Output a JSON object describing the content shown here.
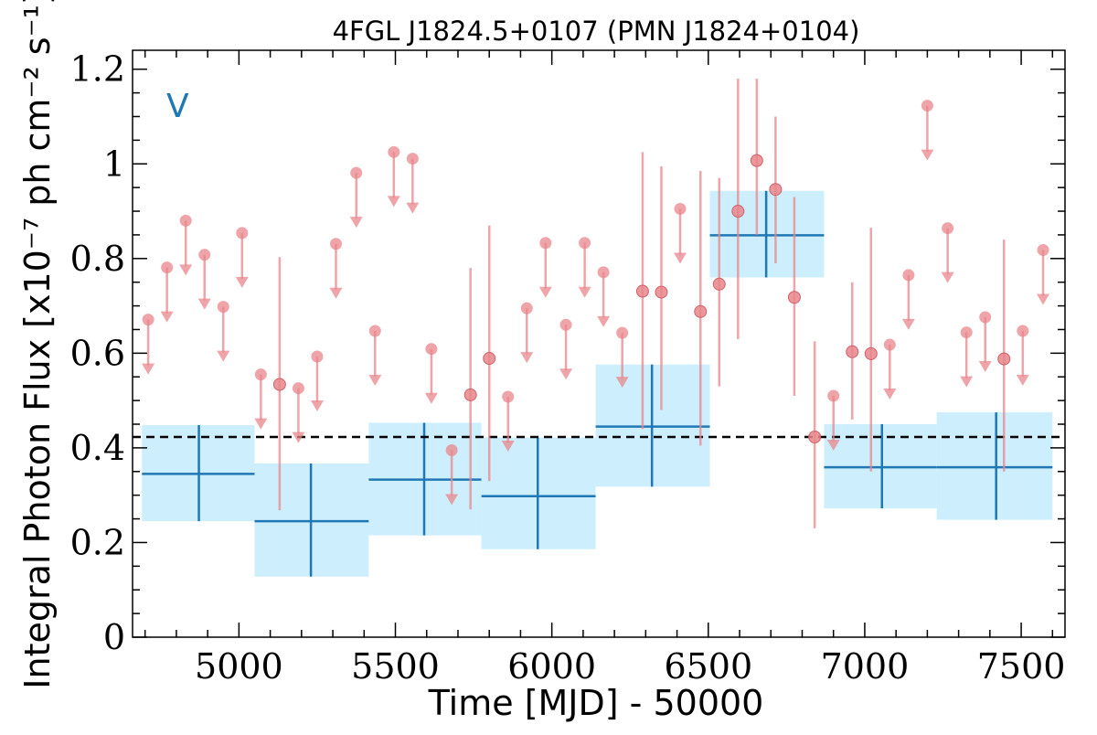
{
  "chart_data": {
    "type": "scatter",
    "title": "4FGL J1824.5+0107 (PMN J1824+0104)",
    "xlabel": "Time [MJD] - 50000",
    "ylabel": "Integral Photon Flux [x10⁻⁷ ph cm⁻² s⁻¹]",
    "xlim": [
      4660,
      7640
    ],
    "ylim": [
      0,
      1.24
    ],
    "xticks": [
      5000,
      5500,
      6000,
      6500,
      7000,
      7500
    ],
    "yticks": [
      0,
      0.2,
      0.4,
      0.6,
      0.8,
      1,
      1.2
    ],
    "ytick_labels": [
      "0",
      "0.2",
      "0.4",
      "0.6",
      "0.8",
      "1",
      "1.2"
    ],
    "annotation": "V",
    "mean_flux": 0.423,
    "colors": {
      "bins": "#1f77b4",
      "bin_fill": "#cdeefc",
      "points": "#e8868b",
      "mean_line": "#000000"
    },
    "binned": [
      {
        "x": 4872,
        "xmin": 4690,
        "xmax": 5050,
        "y": 0.345,
        "ylo": 0.245,
        "yhi": 0.448
      },
      {
        "x": 5230,
        "xmin": 5050,
        "xmax": 5415,
        "y": 0.245,
        "ylo": 0.128,
        "yhi": 0.367
      },
      {
        "x": 5592,
        "xmin": 5415,
        "xmax": 5775,
        "y": 0.333,
        "ylo": 0.215,
        "yhi": 0.453
      },
      {
        "x": 5955,
        "xmin": 5775,
        "xmax": 6140,
        "y": 0.298,
        "ylo": 0.186,
        "yhi": 0.422
      },
      {
        "x": 6320,
        "xmin": 6140,
        "xmax": 6505,
        "y": 0.445,
        "ylo": 0.318,
        "yhi": 0.576
      },
      {
        "x": 6685,
        "xmin": 6505,
        "xmax": 6870,
        "y": 0.849,
        "ylo": 0.76,
        "yhi": 0.943
      },
      {
        "x": 7055,
        "xmin": 6870,
        "xmax": 7230,
        "y": 0.359,
        "ylo": 0.272,
        "yhi": 0.45
      },
      {
        "x": 7420,
        "xmin": 7230,
        "xmax": 7600,
        "y": 0.359,
        "ylo": 0.248,
        "yhi": 0.475
      }
    ],
    "points": [
      {
        "x": 4710,
        "y": 0.671,
        "ul": true
      },
      {
        "x": 4770,
        "y": 0.781,
        "ul": true
      },
      {
        "x": 4830,
        "y": 0.88,
        "ul": true
      },
      {
        "x": 4890,
        "y": 0.808,
        "ul": true
      },
      {
        "x": 4950,
        "y": 0.698,
        "ul": true
      },
      {
        "x": 5010,
        "y": 0.854,
        "ul": true
      },
      {
        "x": 5070,
        "y": 0.555,
        "ul": true
      },
      {
        "x": 5130,
        "y": 0.534,
        "lo": 0.268,
        "hi": 0.803
      },
      {
        "x": 5190,
        "y": 0.526,
        "ul": true
      },
      {
        "x": 5250,
        "y": 0.593,
        "ul": true
      },
      {
        "x": 5310,
        "y": 0.831,
        "ul": true
      },
      {
        "x": 5375,
        "y": 0.981,
        "ul": true
      },
      {
        "x": 5435,
        "y": 0.647,
        "ul": true
      },
      {
        "x": 5495,
        "y": 1.025,
        "ul": true
      },
      {
        "x": 5555,
        "y": 1.011,
        "ul": true
      },
      {
        "x": 5615,
        "y": 0.609,
        "ul": true
      },
      {
        "x": 5680,
        "y": 0.395,
        "ul": true
      },
      {
        "x": 5740,
        "y": 0.512,
        "lo": 0.27,
        "hi": 0.78
      },
      {
        "x": 5800,
        "y": 0.589,
        "lo": 0.33,
        "hi": 0.87
      },
      {
        "x": 5860,
        "y": 0.508,
        "ul": true
      },
      {
        "x": 5920,
        "y": 0.695,
        "ul": true
      },
      {
        "x": 5980,
        "y": 0.833,
        "ul": true
      },
      {
        "x": 6045,
        "y": 0.66,
        "ul": true
      },
      {
        "x": 6105,
        "y": 0.833,
        "ul": true
      },
      {
        "x": 6165,
        "y": 0.771,
        "ul": true
      },
      {
        "x": 6225,
        "y": 0.643,
        "ul": true
      },
      {
        "x": 6290,
        "y": 0.731,
        "lo": 0.44,
        "hi": 1.025
      },
      {
        "x": 6350,
        "y": 0.729,
        "lo": 0.48,
        "hi": 0.995
      },
      {
        "x": 6410,
        "y": 0.905,
        "ul": true
      },
      {
        "x": 6475,
        "y": 0.688,
        "lo": 0.405,
        "hi": 0.985
      },
      {
        "x": 6535,
        "y": 0.746,
        "lo": 0.53,
        "hi": 0.97
      },
      {
        "x": 6595,
        "y": 0.9,
        "lo": 0.63,
        "hi": 1.18
      },
      {
        "x": 6655,
        "y": 1.007,
        "lo": 0.85,
        "hi": 1.18
      },
      {
        "x": 6715,
        "y": 0.946,
        "lo": 0.79,
        "hi": 1.1
      },
      {
        "x": 6775,
        "y": 0.718,
        "lo": 0.51,
        "hi": 0.93
      },
      {
        "x": 6840,
        "y": 0.423,
        "lo": 0.23,
        "hi": 0.625
      },
      {
        "x": 6900,
        "y": 0.51,
        "ul": true
      },
      {
        "x": 6960,
        "y": 0.603,
        "lo": 0.46,
        "hi": 0.75
      },
      {
        "x": 7020,
        "y": 0.599,
        "lo": 0.35,
        "hi": 0.865
      },
      {
        "x": 7080,
        "y": 0.618,
        "ul": true
      },
      {
        "x": 7140,
        "y": 0.765,
        "ul": true
      },
      {
        "x": 7200,
        "y": 1.123,
        "ul": true
      },
      {
        "x": 7265,
        "y": 0.864,
        "ul": true
      },
      {
        "x": 7325,
        "y": 0.644,
        "ul": true
      },
      {
        "x": 7385,
        "y": 0.676,
        "ul": true
      },
      {
        "x": 7445,
        "y": 0.588,
        "lo": 0.35,
        "hi": 0.84
      },
      {
        "x": 7505,
        "y": 0.647,
        "ul": true
      },
      {
        "x": 7570,
        "y": 0.818,
        "ul": true
      }
    ]
  }
}
